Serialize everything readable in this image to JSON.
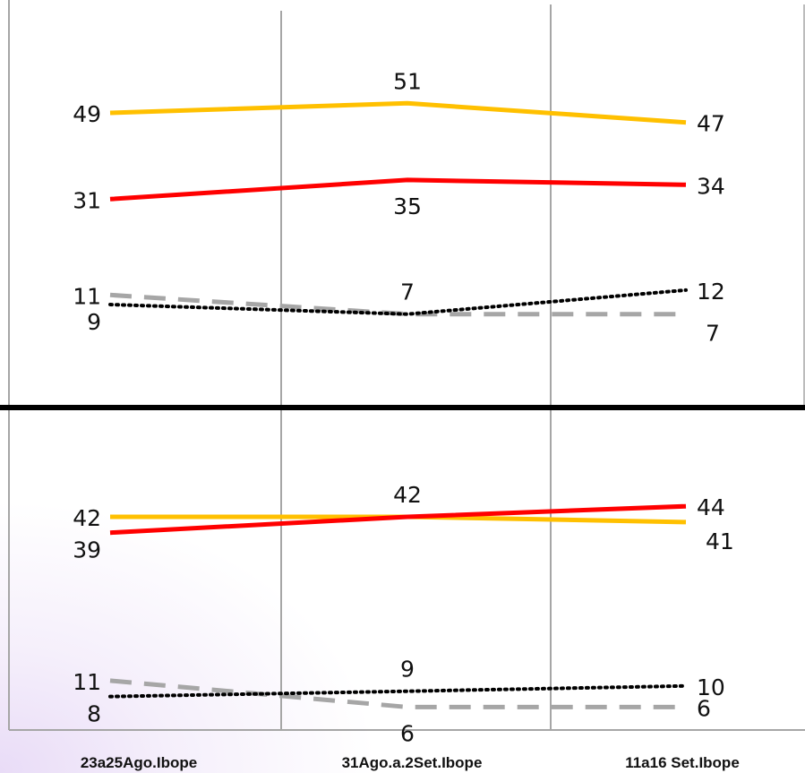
{
  "colors": {
    "series_a": "#FFC000",
    "series_b": "#FF0000",
    "series_c": "#A6A6A6",
    "series_d": "#000000",
    "divider": "#000000",
    "gridline": "#A6A6A6"
  },
  "chart_data": [
    {
      "type": "line",
      "title": "",
      "xlabel": "",
      "ylabel": "",
      "categories": [
        "23a25Ago.Ibope",
        "31Ago.a.2Set.Ibope",
        "11a16 Set.Ibope"
      ],
      "ylim": [
        5,
        53
      ],
      "grid": "vertical",
      "legend": "none",
      "series": [
        {
          "color": "#FFC000",
          "style": "solid",
          "values": [
            49,
            51,
            47
          ],
          "labels": [
            "49",
            "51",
            "47"
          ],
          "label_pos": [
            "left",
            "above",
            "right"
          ]
        },
        {
          "color": "#FF0000",
          "style": "solid",
          "values": [
            31,
            35,
            34
          ],
          "labels": [
            "31",
            "35",
            "34"
          ],
          "label_pos": [
            "left",
            "below",
            "right"
          ]
        },
        {
          "color": "#A6A6A6",
          "style": "dashed",
          "values": [
            11,
            7,
            7
          ],
          "labels": [
            "11",
            "7",
            "7"
          ],
          "label_pos": [
            "left",
            "above",
            "right-below"
          ]
        },
        {
          "color": "#000000",
          "style": "dotted",
          "values": [
            9,
            7,
            12
          ],
          "labels": [
            "9",
            "",
            "12"
          ],
          "label_pos": [
            "left-below",
            "none",
            "right"
          ]
        }
      ]
    },
    {
      "type": "line",
      "title": "",
      "xlabel": "",
      "ylabel": "",
      "categories": [
        "23a25Ago.Ibope",
        "31Ago.a.2Set.Ibope",
        "11a16 Set.Ibope"
      ],
      "ylim": [
        5,
        46
      ],
      "grid": "vertical",
      "legend": "none",
      "series": [
        {
          "color": "#FFC000",
          "style": "solid",
          "values": [
            42,
            42,
            41
          ],
          "labels": [
            "42",
            "42",
            "41"
          ],
          "label_pos": [
            "left",
            "above",
            "right-below"
          ]
        },
        {
          "color": "#FF0000",
          "style": "solid",
          "values": [
            39,
            42,
            44
          ],
          "labels": [
            "39",
            "",
            "44"
          ],
          "label_pos": [
            "left-below",
            "none",
            "right"
          ]
        },
        {
          "color": "#A6A6A6",
          "style": "dashed",
          "values": [
            11,
            6,
            6
          ],
          "labels": [
            "11",
            "6",
            "6"
          ],
          "label_pos": [
            "left",
            "below",
            "right"
          ]
        },
        {
          "color": "#000000",
          "style": "dotted",
          "values": [
            8,
            9,
            10
          ],
          "labels": [
            "8",
            "9",
            "10"
          ],
          "label_pos": [
            "left-below",
            "above",
            "right"
          ]
        }
      ]
    }
  ]
}
